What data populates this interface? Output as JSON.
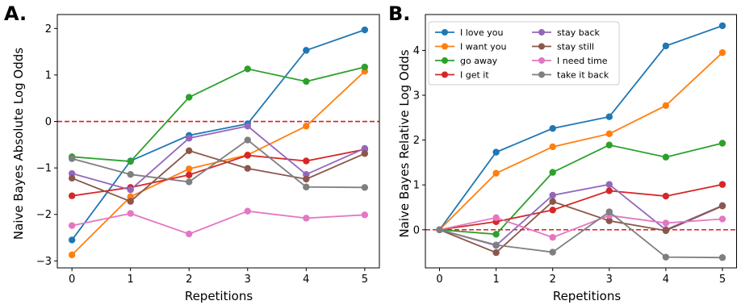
{
  "chart_data": [
    {
      "panel": "A.",
      "type": "line",
      "xlabel": "Repetitions",
      "ylabel": "Naive Bayes Absolute Log Odds",
      "x": [
        0,
        1,
        2,
        3,
        4,
        5
      ],
      "xlim": [
        -0.25,
        5.25
      ],
      "ylim": [
        -3.15,
        2.3
      ],
      "xticks": [
        0,
        1,
        2,
        3,
        4,
        5
      ],
      "yticks": [
        -3,
        -2,
        -1,
        0,
        1,
        2
      ],
      "reference_line": {
        "y": 0,
        "style": "dashed",
        "color": "#e31a1c"
      },
      "grid": false,
      "series": [
        {
          "name": "I love you",
          "color": "#1f77b4",
          "values": [
            -2.55,
            -0.85,
            -0.3,
            -0.05,
            1.53,
            1.97
          ]
        },
        {
          "name": "I want you",
          "color": "#ff7f0e",
          "values": [
            -2.87,
            -1.62,
            -1.02,
            -0.72,
            -0.1,
            1.08
          ]
        },
        {
          "name": "go away",
          "color": "#2ca02c",
          "values": [
            -0.76,
            -0.86,
            0.52,
            1.13,
            0.86,
            1.17
          ]
        },
        {
          "name": "I get it",
          "color": "#d62728",
          "values": [
            -1.6,
            -1.42,
            -1.15,
            -0.73,
            -0.85,
            -0.6
          ]
        },
        {
          "name": "stay back",
          "color": "#9467bd",
          "values": [
            -1.12,
            -1.47,
            -0.36,
            -0.1,
            -1.14,
            -0.58
          ]
        },
        {
          "name": "stay still",
          "color": "#8c564b",
          "values": [
            -1.22,
            -1.72,
            -0.63,
            -1.01,
            -1.24,
            -0.69
          ]
        },
        {
          "name": "I need time",
          "color": "#e377c2",
          "values": [
            -2.24,
            -1.98,
            -2.42,
            -1.93,
            -2.08,
            -2.01
          ]
        },
        {
          "name": "take it back",
          "color": "#7f7f7f",
          "values": [
            -0.8,
            -1.14,
            -1.3,
            -0.4,
            -1.41,
            -1.42
          ]
        }
      ]
    },
    {
      "panel": "B.",
      "type": "line",
      "xlabel": "Repetitions",
      "ylabel": "Naive Bayes Relative Log Odds",
      "x": [
        0,
        1,
        2,
        3,
        4,
        5
      ],
      "xlim": [
        -0.25,
        5.25
      ],
      "ylim": [
        -0.85,
        4.8
      ],
      "xticks": [
        0,
        1,
        2,
        3,
        4,
        5
      ],
      "yticks": [
        0,
        1,
        2,
        3,
        4
      ],
      "reference_line": {
        "y": 0,
        "style": "dashed",
        "color": "#e31a1c"
      },
      "grid": false,
      "legend": {
        "position": "top-left",
        "columns": 2
      },
      "series": [
        {
          "name": "I love you",
          "color": "#1f77b4",
          "values": [
            0,
            1.73,
            2.26,
            2.52,
            4.1,
            4.55
          ]
        },
        {
          "name": "I want you",
          "color": "#ff7f0e",
          "values": [
            0,
            1.26,
            1.85,
            2.14,
            2.77,
            3.95
          ]
        },
        {
          "name": "go away",
          "color": "#2ca02c",
          "values": [
            0,
            -0.1,
            1.28,
            1.89,
            1.62,
            1.93
          ]
        },
        {
          "name": "I get it",
          "color": "#d62728",
          "values": [
            0,
            0.18,
            0.44,
            0.87,
            0.75,
            1.01
          ]
        },
        {
          "name": "stay back",
          "color": "#9467bd",
          "values": [
            0,
            -0.35,
            0.77,
            1.01,
            0.0,
            0.54
          ]
        },
        {
          "name": "stay still",
          "color": "#8c564b",
          "values": [
            0,
            -0.51,
            0.63,
            0.2,
            -0.02,
            0.53
          ]
        },
        {
          "name": "I need time",
          "color": "#e377c2",
          "values": [
            0,
            0.27,
            -0.17,
            0.32,
            0.15,
            0.24
          ]
        },
        {
          "name": "take it back",
          "color": "#7f7f7f",
          "values": [
            0,
            -0.34,
            -0.5,
            0.4,
            -0.61,
            -0.62
          ]
        }
      ]
    }
  ]
}
